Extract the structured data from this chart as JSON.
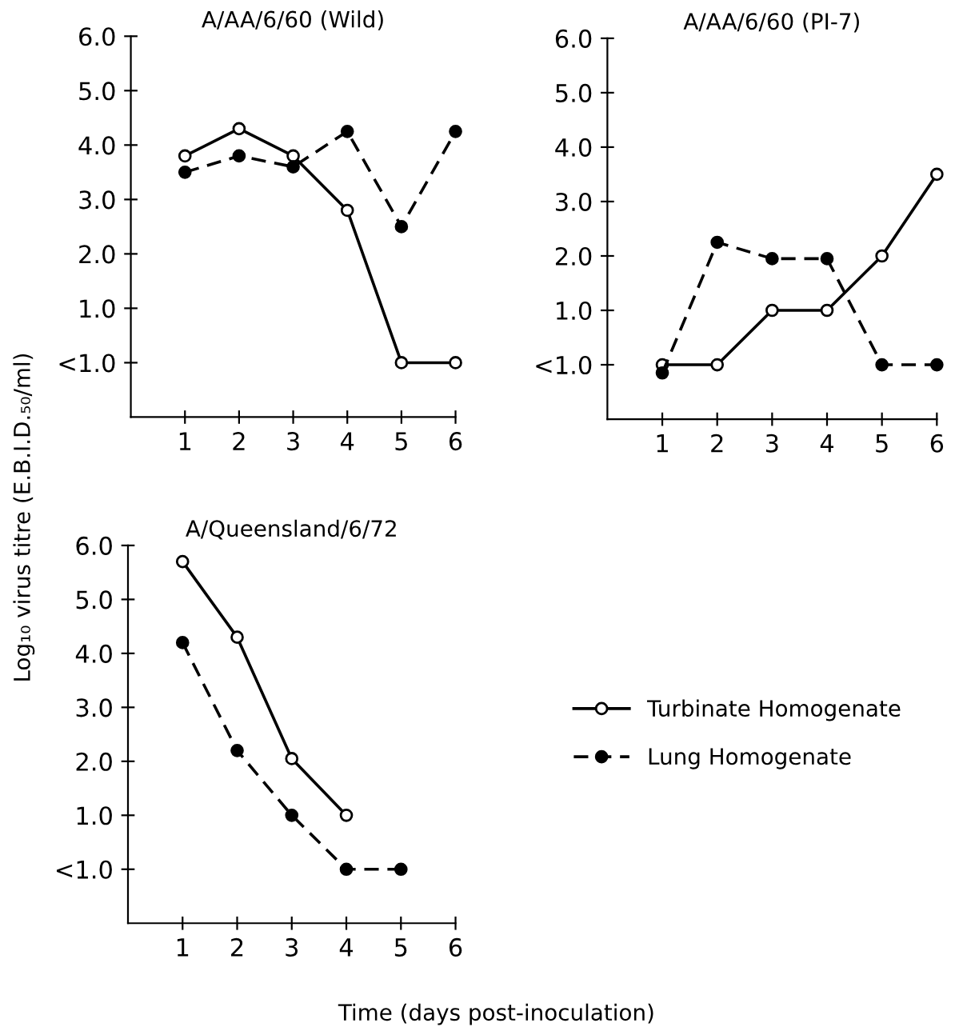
{
  "chart_data": [
    {
      "type": "line",
      "title": "A/AA/6/60 (Wild)",
      "x": [
        1,
        2,
        3,
        4,
        5,
        6
      ],
      "xlim": [
        0,
        6
      ],
      "xticks": [
        1,
        2,
        3,
        4,
        5,
        6
      ],
      "ylim": [
        -1,
        6
      ],
      "yticks": [
        {
          "value": 0,
          "label": "<1.0"
        },
        {
          "value": 1,
          "label": "1.0"
        },
        {
          "value": 2,
          "label": "2.0"
        },
        {
          "value": 3,
          "label": "3.0"
        },
        {
          "value": 4,
          "label": "4.0"
        },
        {
          "value": 5,
          "label": "5.0"
        },
        {
          "value": 6,
          "label": "6.0"
        }
      ],
      "grid": false,
      "marker": "circle",
      "series": [
        {
          "color": "#000000",
          "line_style": "solid",
          "values": [
            3.8,
            4.3,
            3.8,
            2.8,
            0,
            0
          ]
        },
        {
          "color": "#000000",
          "line_style": "dashed",
          "values": [
            3.5,
            3.8,
            3.6,
            4.25,
            2.5,
            4.25
          ]
        }
      ]
    },
    {
      "type": "line",
      "title": "A/AA/6/60 (PI-7)",
      "x": [
        1,
        2,
        3,
        4,
        5,
        6
      ],
      "xlim": [
        0,
        6
      ],
      "xticks": [
        1,
        2,
        3,
        4,
        5,
        6
      ],
      "ylim": [
        -1,
        6
      ],
      "yticks": [
        {
          "value": 0,
          "label": "<1.0"
        },
        {
          "value": 1,
          "label": "1.0"
        },
        {
          "value": 2,
          "label": "2.0"
        },
        {
          "value": 3,
          "label": "3.0"
        },
        {
          "value": 4,
          "label": "4.0"
        },
        {
          "value": 5,
          "label": "5.0"
        },
        {
          "value": 6,
          "label": "6.0"
        }
      ],
      "grid": false,
      "marker": "circle",
      "series": [
        {
          "color": "#000000",
          "line_style": "solid",
          "values": [
            0,
            0,
            1,
            1,
            2,
            3.5
          ]
        },
        {
          "color": "#000000",
          "line_style": "dashed",
          "values": [
            -0.15,
            2.25,
            1.95,
            1.95,
            0,
            0
          ]
        }
      ]
    },
    {
      "type": "line",
      "title": "A/Queensland/6/72",
      "xlabel": "Time (days post-inoculation)",
      "ylabel": "Log₁₀ virus titre (E.B.I.D.₅₀/ml)",
      "x": [
        1,
        2,
        3,
        4,
        5
      ],
      "xlim": [
        0,
        6
      ],
      "xticks": [
        1,
        2,
        3,
        4,
        5,
        6
      ],
      "ylim": [
        -1,
        6
      ],
      "yticks": [
        {
          "value": 0,
          "label": "<1.0"
        },
        {
          "value": 1,
          "label": "1.0"
        },
        {
          "value": 2,
          "label": "2.0"
        },
        {
          "value": 3,
          "label": "3.0"
        },
        {
          "value": 4,
          "label": "4.0"
        },
        {
          "value": 5,
          "label": "5.0"
        },
        {
          "value": 6,
          "label": "6.0"
        }
      ],
      "grid": false,
      "marker": "circle",
      "legend": "right",
      "series": [
        {
          "name": "Turbinate Homogenate",
          "color": "#000000",
          "line_style": "solid",
          "x": [
            1,
            2,
            3,
            4
          ],
          "values": [
            5.7,
            4.3,
            2.05,
            1.0
          ]
        },
        {
          "name": "Lung Homogenate",
          "color": "#000000",
          "line_style": "dashed",
          "values": [
            4.2,
            2.2,
            1.0,
            0,
            0
          ]
        }
      ]
    }
  ]
}
